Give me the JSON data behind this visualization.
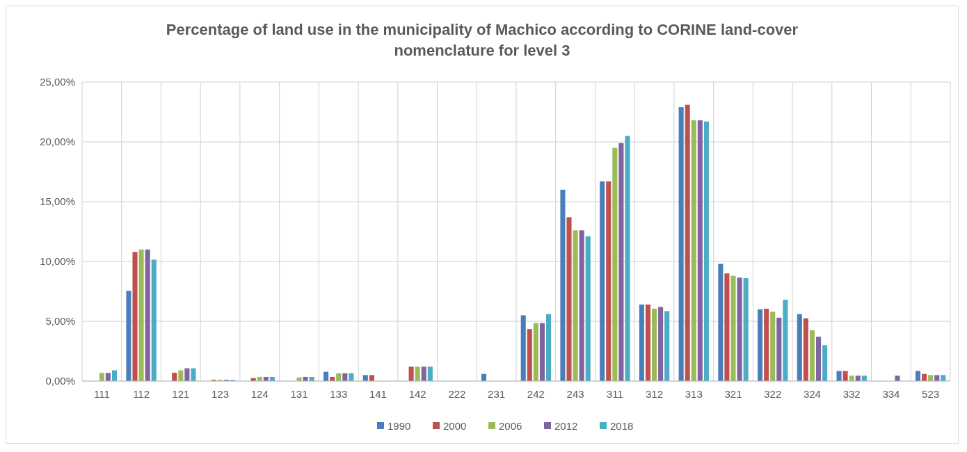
{
  "chart_data": {
    "type": "bar",
    "title": "Percentage of land use in the municipality of Machico according to CORINE land-cover nomenclature for level 3",
    "categories": [
      "111",
      "112",
      "121",
      "123",
      "124",
      "131",
      "133",
      "141",
      "142",
      "222",
      "231",
      "242",
      "243",
      "311",
      "312",
      "313",
      "321",
      "322",
      "324",
      "332",
      "334",
      "523"
    ],
    "series": [
      {
        "name": "1990",
        "color": "#4a7ebb",
        "values": [
          0,
          7.55,
          0,
          0,
          0,
          0,
          0.78,
          0.5,
          0,
          0,
          0.6,
          5.5,
          16.0,
          16.7,
          6.4,
          22.9,
          9.8,
          6.0,
          5.6,
          0.84,
          0,
          0.85
        ]
      },
      {
        "name": "2000",
        "color": "#c0504d",
        "values": [
          0,
          10.8,
          0.7,
          0.1,
          0.25,
          0,
          0.35,
          0.5,
          1.2,
          0,
          0,
          4.35,
          13.7,
          16.7,
          6.4,
          23.1,
          9.0,
          6.05,
          5.25,
          0.84,
          0,
          0.6
        ]
      },
      {
        "name": "2006",
        "color": "#9bbb59",
        "values": [
          0.68,
          11.0,
          0.9,
          0.1,
          0.35,
          0.3,
          0.65,
          0,
          1.2,
          0,
          0,
          4.85,
          12.6,
          19.5,
          6.05,
          21.8,
          8.8,
          5.8,
          4.25,
          0.45,
          0,
          0.5
        ]
      },
      {
        "name": "2012",
        "color": "#8064a2",
        "values": [
          0.68,
          11.0,
          1.07,
          0.1,
          0.35,
          0.35,
          0.65,
          0,
          1.2,
          0,
          0,
          4.85,
          12.6,
          19.9,
          6.2,
          21.8,
          8.65,
          5.3,
          3.7,
          0.45,
          0.45,
          0.5
        ]
      },
      {
        "name": "2018",
        "color": "#4bacc6",
        "values": [
          0.9,
          10.15,
          1.07,
          0.1,
          0.35,
          0.35,
          0.65,
          0,
          1.2,
          0,
          0,
          5.6,
          12.1,
          20.5,
          5.85,
          21.7,
          8.6,
          6.8,
          3.0,
          0.45,
          0,
          0.5
        ]
      }
    ],
    "ylim": [
      0,
      25
    ],
    "yticks": [
      {
        "value": 0,
        "label": "0,00%"
      },
      {
        "value": 5,
        "label": "5,00%"
      },
      {
        "value": 10,
        "label": "10,00%"
      },
      {
        "value": 15,
        "label": "15,00%"
      },
      {
        "value": 20,
        "label": "20,00%"
      },
      {
        "value": 25,
        "label": "25,00%"
      }
    ],
    "grid": true,
    "legend": "bottom"
  }
}
